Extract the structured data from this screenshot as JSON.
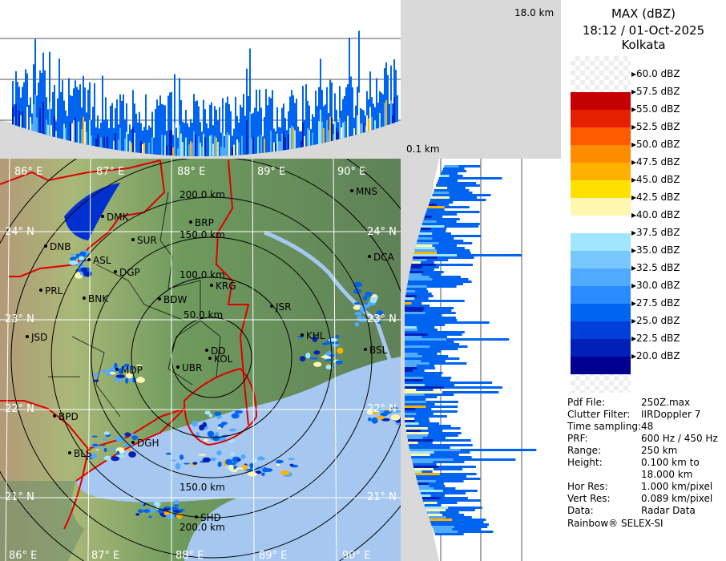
{
  "header": {
    "product": "MAX (dBZ)",
    "datetime": "18:12 / 01-Oct-2025",
    "site": "Kolkata"
  },
  "profile": {
    "top_height_label": "18.0 km",
    "bottom_height_label": "0.1 km"
  },
  "legend": {
    "unit": "dBZ",
    "ticks": [
      "60.0 dBZ",
      "57.5 dBZ",
      "55.0 dBZ",
      "52.5 dBZ",
      "50.0 dBZ",
      "47.5 dBZ",
      "45.0 dBZ",
      "42.5 dBZ",
      "40.0 dBZ",
      "37.5 dBZ",
      "35.0 dBZ",
      "32.5 dBZ",
      "30.0 dBZ",
      "27.5 dBZ",
      "25.0 dBZ",
      "22.5 dBZ",
      "20.0 dBZ"
    ],
    "colors": [
      "#8c0000",
      "#c40000",
      "#e42000",
      "#ff5a00",
      "#ff8c00",
      "#ffb000",
      "#ffe000",
      "#fff6b0",
      "#ffffff",
      "#a0e6ff",
      "#78c8ff",
      "#50aaff",
      "#288cff",
      "#0064f0",
      "#0040d8",
      "#0020b8",
      "#000090"
    ]
  },
  "info": [
    {
      "key": "Pdf File:",
      "value": "250Z.max"
    },
    {
      "key": "Clutter Filter:",
      "value": "IIRDoppler 7"
    },
    {
      "key": "Time sampling:",
      "value": "48"
    },
    {
      "key": "PRF:",
      "value": "600 Hz / 450 Hz"
    },
    {
      "key": "Range:",
      "value": "250 km"
    },
    {
      "key": "Height:",
      "value": "0.100 km to"
    },
    {
      "key": "",
      "value": "18.000 km"
    },
    {
      "key": "Hor Res:",
      "value": "1.000 km/pixel"
    },
    {
      "key": "Vert Res:",
      "value": "0.089 km/pixel"
    },
    {
      "key": "Data:",
      "value": "Radar Data"
    }
  ],
  "credit": "Rainbow® SELEX-SI",
  "map": {
    "lon_labels": [
      "86° E",
      "87° E",
      "88° E",
      "89° E",
      "90° E"
    ],
    "lat_labels": [
      "24° N",
      "23° N",
      "22° N",
      "21° N"
    ],
    "range_rings": [
      "50.0 km",
      "100.0 km",
      "150.0 km",
      "200.0 km"
    ],
    "cities": [
      "DMK",
      "DNB",
      "SUR",
      "BRP",
      "ASL",
      "DGP",
      "PRL",
      "BNK",
      "BDW",
      "KRG",
      "JSR",
      "KHL",
      "JSD",
      "DD",
      "KOL",
      "UBR",
      "BPD",
      "BLS",
      "DGH",
      "SHD",
      "MNS",
      "DCA",
      "BSL",
      "MDP"
    ],
    "colors": {
      "land": "#6f9a5e",
      "sea": "#a6c8f0",
      "state_border": "#e00000",
      "district_border": "#000000"
    }
  }
}
